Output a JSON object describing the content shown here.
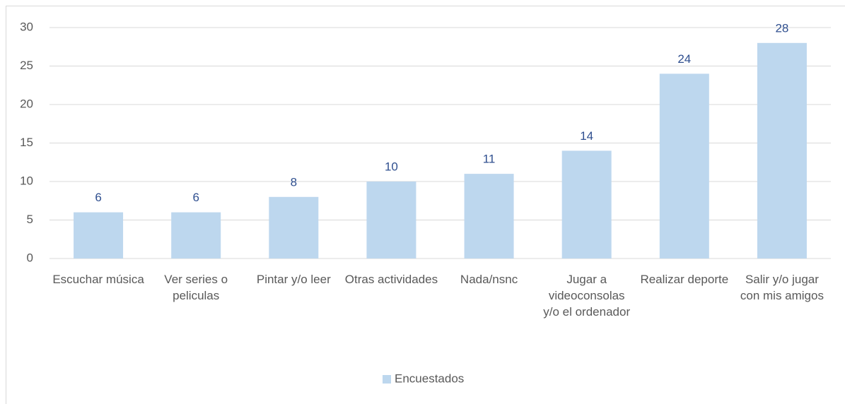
{
  "chart_data": {
    "type": "bar",
    "categories": [
      "Escuchar música",
      "Ver series o peliculas",
      "Pintar y/o leer",
      "Otras actividades",
      "Nada/nsnc",
      "Jugar a videoconsolas y/o el ordenador",
      "Realizar deporte",
      "Salir y/o jugar con mis amigos"
    ],
    "series": [
      {
        "name": "Encuestados",
        "color": "#bdd7ee",
        "values": [
          6,
          6,
          8,
          10,
          11,
          14,
          24,
          28
        ]
      }
    ],
    "ylim": [
      0,
      30
    ],
    "yticks": [
      0,
      5,
      10,
      15,
      20,
      25,
      30
    ],
    "grid": true,
    "legend": "bottom"
  }
}
